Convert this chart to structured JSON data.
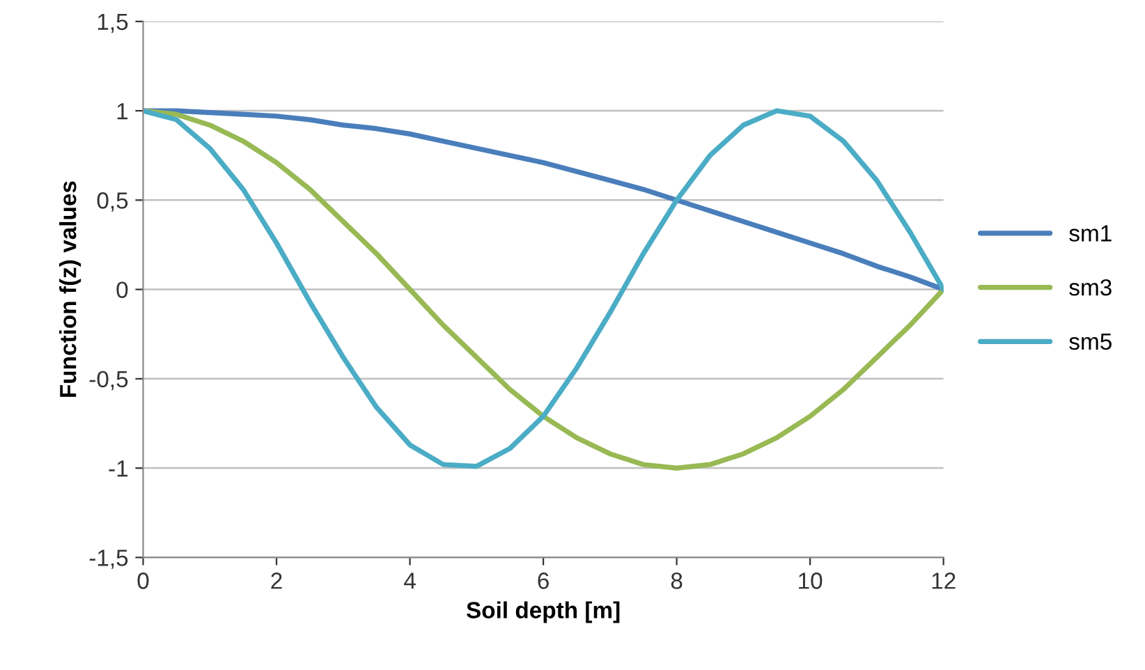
{
  "chart_data": {
    "type": "line",
    "xlabel": "Soil depth [m]",
    "ylabel": "Function f(z) values",
    "x": [
      0,
      0.5,
      1,
      1.5,
      2,
      2.5,
      3,
      3.5,
      4,
      4.5,
      5,
      5.5,
      6,
      6.5,
      7,
      7.5,
      8,
      8.5,
      9,
      9.5,
      10,
      10.5,
      11,
      11.5,
      12
    ],
    "series": [
      {
        "name": "sm1",
        "color": "#4a7ebb",
        "values": [
          1,
          1,
          0.99,
          0.98,
          0.97,
          0.95,
          0.92,
          0.9,
          0.87,
          0.83,
          0.79,
          0.75,
          0.71,
          0.66,
          0.61,
          0.56,
          0.5,
          0.44,
          0.38,
          0.32,
          0.26,
          0.2,
          0.13,
          0.07,
          0
        ]
      },
      {
        "name": "sm3",
        "color": "#98b954",
        "values": [
          1,
          0.98,
          0.92,
          0.83,
          0.71,
          0.56,
          0.38,
          0.2,
          0,
          -0.2,
          -0.38,
          -0.56,
          -0.71,
          -0.83,
          -0.92,
          -0.98,
          -1,
          -0.98,
          -0.92,
          -0.83,
          -0.71,
          -0.56,
          -0.38,
          -0.2,
          0
        ]
      },
      {
        "name": "sm5",
        "color": "#4bacc6",
        "values": [
          1,
          0.95,
          0.79,
          0.56,
          0.26,
          -0.07,
          -0.38,
          -0.66,
          -0.87,
          -0.98,
          -0.99,
          -0.89,
          -0.71,
          -0.44,
          -0.13,
          0.2,
          0.5,
          0.75,
          0.92,
          1,
          0.97,
          0.83,
          0.61,
          0.32,
          0
        ]
      }
    ],
    "xlim": [
      0,
      12
    ],
    "xticks": [
      0,
      2,
      4,
      6,
      8,
      10,
      12
    ],
    "ylim": [
      -1.5,
      1.5
    ],
    "yticks": [
      {
        "value": -1.5,
        "label": "-1,5"
      },
      -1,
      {
        "value": -0.5,
        "label": "-0,5"
      },
      0,
      {
        "value": 0.5,
        "label": "0,5"
      },
      1,
      {
        "value": 1.5,
        "label": "1,5"
      }
    ],
    "grid": "y",
    "legend": "right",
    "marker": "none",
    "line_style": "solid"
  }
}
